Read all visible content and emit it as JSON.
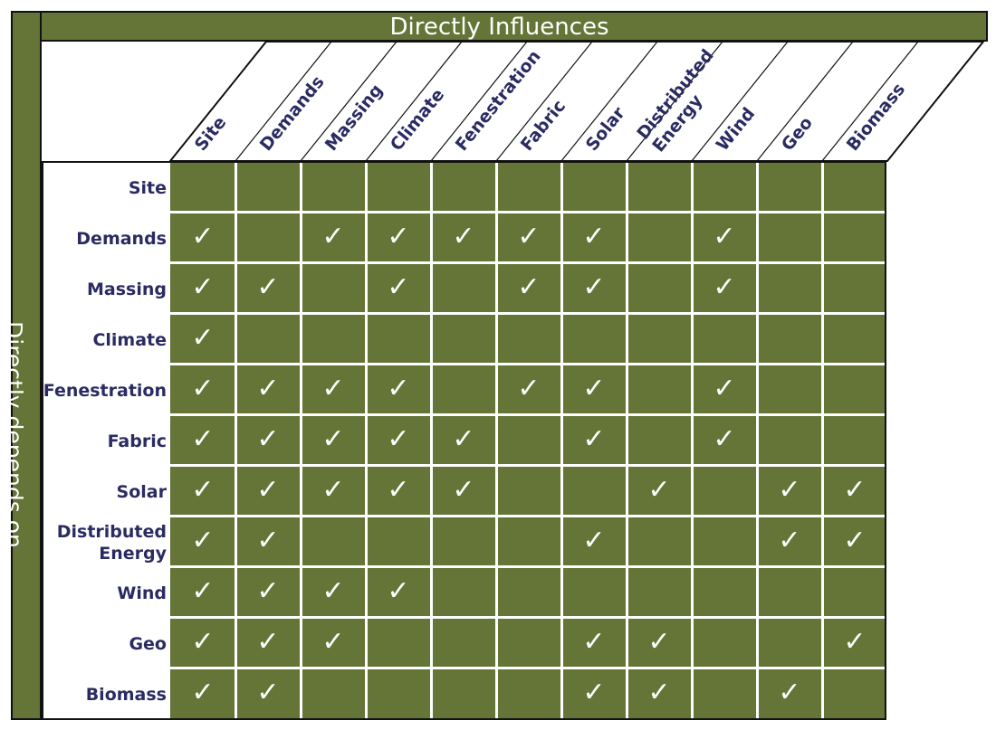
{
  "title_top": "Directly Influences",
  "title_left": "Directly depends on",
  "check_glyph": "✓",
  "colors": {
    "band": "#657437",
    "label": "#2b2b63",
    "line": "#ffffff"
  },
  "columns": [
    "Site",
    "Demands",
    "Massing",
    "Climate",
    "Fenestration",
    "Fabric",
    "Solar",
    "Distributed Energy",
    "Wind",
    "Geo",
    "Biomass"
  ],
  "rows": [
    {
      "label": "Site",
      "checks": []
    },
    {
      "label": "Demands",
      "checks": [
        "Site",
        "Massing",
        "Climate",
        "Fenestration",
        "Fabric",
        "Solar",
        "Wind"
      ]
    },
    {
      "label": "Massing",
      "checks": [
        "Site",
        "Demands",
        "Climate",
        "Fabric",
        "Solar",
        "Wind"
      ]
    },
    {
      "label": "Climate",
      "checks": [
        "Site"
      ]
    },
    {
      "label": "Fenestration",
      "checks": [
        "Site",
        "Demands",
        "Massing",
        "Climate",
        "Fabric",
        "Solar",
        "Wind"
      ]
    },
    {
      "label": "Fabric",
      "checks": [
        "Site",
        "Demands",
        "Massing",
        "Climate",
        "Fenestration",
        "Solar",
        "Wind"
      ]
    },
    {
      "label": "Solar",
      "checks": [
        "Site",
        "Demands",
        "Massing",
        "Climate",
        "Fenestration",
        "Distributed Energy",
        "Geo",
        "Biomass"
      ]
    },
    {
      "label": "Distributed Energy",
      "checks": [
        "Site",
        "Demands",
        "Solar",
        "Geo",
        "Biomass"
      ]
    },
    {
      "label": "Wind",
      "checks": [
        "Site",
        "Demands",
        "Massing",
        "Climate"
      ]
    },
    {
      "label": "Geo",
      "checks": [
        "Site",
        "Demands",
        "Massing",
        "Solar",
        "Distributed Energy",
        "Biomass"
      ]
    },
    {
      "label": "Biomass",
      "checks": [
        "Site",
        "Demands",
        "Solar",
        "Distributed Energy",
        "Geo"
      ]
    }
  ]
}
